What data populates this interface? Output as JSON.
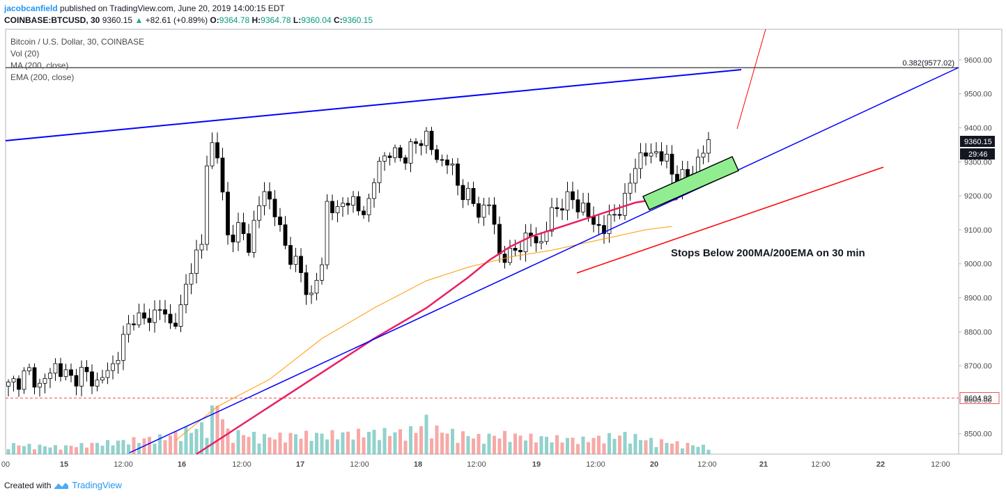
{
  "header": {
    "username": "jacobcanfield",
    "published_text": "published on TradingView.com, June 20, 2019 14:00:15 EDT",
    "symbol": "COINBASE:BTCUSD, 30",
    "last": "9360.15",
    "change": "+82.61 (+0.89%)",
    "o_label": "O:",
    "o": "9364.78",
    "h_label": "H:",
    "h": "9364.78",
    "l_label": "L:",
    "l": "9360.04",
    "c_label": "C:",
    "c": "9360.15"
  },
  "legend": {
    "title": "Bitcoin / U.S. Dollar, 30, COINBASE",
    "vol": "Vol (20)",
    "ma": "MA (200, close)",
    "ema": "EMA (200, close)"
  },
  "footer": {
    "created_with": "Created with",
    "brand": "TradingView"
  },
  "colors": {
    "up": "#26a69a",
    "down": "#ef5350",
    "ma": "#e91e63",
    "ema": "#ff9800",
    "trend": "#0000ff",
    "red_line": "#ff0000",
    "box": "#90ee90"
  },
  "chart_data": {
    "type": "candlestick",
    "title": "Bitcoin / U.S. Dollar, 30, COINBASE",
    "ylim": [
      8440,
      9690
    ],
    "y_ticks": [
      "8500.00",
      "8600.00",
      "8700.00",
      "8800.00",
      "8900.00",
      "9000.00",
      "9100.00",
      "9200.00",
      "9300.00",
      "9400.00",
      "9500.00",
      "9600.00"
    ],
    "x_ticks": [
      "00",
      "15",
      "12:00",
      "16",
      "12:00",
      "17",
      "12:00",
      "18",
      "12:00",
      "19",
      "12:00",
      "20",
      "12:00",
      "21",
      "12:00",
      "22",
      "12:00"
    ],
    "price_path": [
      [
        0,
        8640
      ],
      [
        4,
        8680
      ],
      [
        6,
        8640
      ],
      [
        9,
        8700
      ],
      [
        12,
        8660
      ],
      [
        14,
        8680
      ],
      [
        17,
        8650
      ],
      [
        20,
        8700
      ],
      [
        24,
        8850
      ],
      [
        26,
        8830
      ],
      [
        29,
        8870
      ],
      [
        31,
        8820
      ],
      [
        33,
        8860
      ],
      [
        35,
        9000
      ],
      [
        37,
        9050
      ],
      [
        38,
        9300
      ],
      [
        39,
        9350
      ],
      [
        40,
        9320
      ],
      [
        42,
        9080
      ],
      [
        44,
        9100
      ],
      [
        46,
        9060
      ],
      [
        49,
        9220
      ],
      [
        51,
        9150
      ],
      [
        53,
        9050
      ],
      [
        55,
        9000
      ],
      [
        58,
        8900
      ],
      [
        60,
        9000
      ],
      [
        61,
        9180
      ],
      [
        63,
        9150
      ],
      [
        65,
        9200
      ],
      [
        67,
        9150
      ],
      [
        69,
        9180
      ],
      [
        71,
        9300
      ],
      [
        73,
        9330
      ],
      [
        75,
        9310
      ],
      [
        78,
        9350
      ],
      [
        80,
        9380
      ],
      [
        82,
        9300
      ],
      [
        84,
        9310
      ],
      [
        86,
        9230
      ],
      [
        88,
        9200
      ],
      [
        90,
        9150
      ],
      [
        92,
        9180
      ],
      [
        94,
        9030
      ],
      [
        96,
        9020
      ],
      [
        98,
        9060
      ],
      [
        100,
        9080
      ],
      [
        102,
        9060
      ],
      [
        104,
        9150
      ],
      [
        106,
        9180
      ],
      [
        108,
        9190
      ],
      [
        110,
        9160
      ],
      [
        112,
        9120
      ],
      [
        114,
        9100
      ],
      [
        116,
        9150
      ],
      [
        118,
        9180
      ],
      [
        120,
        9300
      ],
      [
        122,
        9320
      ],
      [
        124,
        9330
      ],
      [
        126,
        9300
      ],
      [
        128,
        9240
      ],
      [
        130,
        9260
      ],
      [
        132,
        9300
      ],
      [
        134,
        9360
      ]
    ],
    "volume_path": [
      [
        0,
        20
      ],
      [
        10,
        15
      ],
      [
        20,
        25
      ],
      [
        30,
        35
      ],
      [
        38,
        60
      ],
      [
        40,
        110
      ],
      [
        42,
        45
      ],
      [
        50,
        35
      ],
      [
        55,
        40
      ],
      [
        60,
        40
      ],
      [
        70,
        45
      ],
      [
        75,
        45
      ],
      [
        78,
        50
      ],
      [
        80,
        70
      ],
      [
        82,
        50
      ],
      [
        90,
        35
      ],
      [
        95,
        40
      ],
      [
        100,
        35
      ],
      [
        110,
        30
      ],
      [
        118,
        40
      ],
      [
        122,
        30
      ],
      [
        126,
        25
      ],
      [
        130,
        20
      ],
      [
        134,
        15
      ]
    ],
    "ma_path": [
      [
        36,
        8440
      ],
      [
        44,
        8520
      ],
      [
        52,
        8600
      ],
      [
        60,
        8680
      ],
      [
        70,
        8780
      ],
      [
        80,
        8870
      ],
      [
        88,
        8960
      ],
      [
        92,
        9010
      ],
      [
        96,
        9050
      ],
      [
        100,
        9080
      ],
      [
        104,
        9100
      ],
      [
        108,
        9120
      ],
      [
        112,
        9140
      ],
      [
        116,
        9160
      ],
      [
        120,
        9180
      ],
      [
        124,
        9190
      ],
      [
        126,
        9185
      ],
      [
        128,
        9190
      ]
    ],
    "ema_path": [
      [
        32,
        8480
      ],
      [
        40,
        8580
      ],
      [
        50,
        8660
      ],
      [
        60,
        8780
      ],
      [
        70,
        8870
      ],
      [
        80,
        8950
      ],
      [
        88,
        8990
      ],
      [
        96,
        9020
      ],
      [
        100,
        9030
      ],
      [
        104,
        9040
      ],
      [
        110,
        9060
      ],
      [
        116,
        9080
      ],
      [
        122,
        9100
      ],
      [
        127,
        9110
      ]
    ],
    "horizontal_levels": [
      {
        "price": 9577.02,
        "label": "0.382(9577.02)"
      },
      {
        "price": 8604.92,
        "label": "8604.92"
      }
    ],
    "price_labels": {
      "last": "9360.15",
      "countdown": "29:46"
    },
    "annotation": "Stops Below 200MA/200EMA on 30 min"
  }
}
